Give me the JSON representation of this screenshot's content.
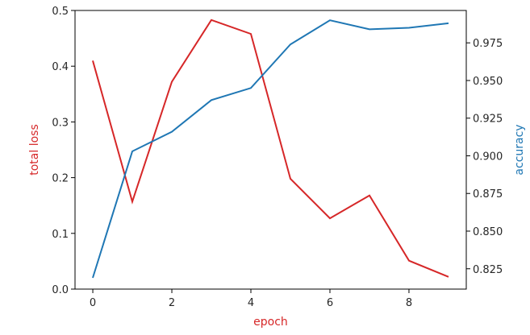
{
  "chart_data": {
    "type": "line",
    "title": "",
    "xlabel": "epoch",
    "ylabel": "total loss",
    "y2label": "accuracy",
    "x": [
      0,
      1,
      2,
      3,
      4,
      5,
      6,
      7,
      8,
      9
    ],
    "xlim": [
      -0.45,
      9.45
    ],
    "ylim": [
      0,
      0.5
    ],
    "y2lim": [
      0.8115,
      0.9965
    ],
    "x_ticks": [
      "0",
      "2",
      "4",
      "6",
      "8"
    ],
    "y_ticks": [
      "0.0",
      "0.1",
      "0.2",
      "0.3",
      "0.4",
      "0.5"
    ],
    "y2_ticks": [
      "0.825",
      "0.850",
      "0.875",
      "0.900",
      "0.925",
      "0.950",
      "0.975"
    ],
    "grid": false,
    "series": [
      {
        "name": "total loss",
        "axis": "left",
        "color": "#d62728",
        "values": [
          0.41,
          0.157,
          0.372,
          0.483,
          0.458,
          0.198,
          0.127,
          0.168,
          0.051,
          0.022
        ]
      },
      {
        "name": "accuracy",
        "axis": "right",
        "color": "#1f77b4",
        "values": [
          0.819,
          0.903,
          0.916,
          0.937,
          0.945,
          0.974,
          0.99,
          0.984,
          0.985,
          0.988
        ]
      }
    ]
  }
}
